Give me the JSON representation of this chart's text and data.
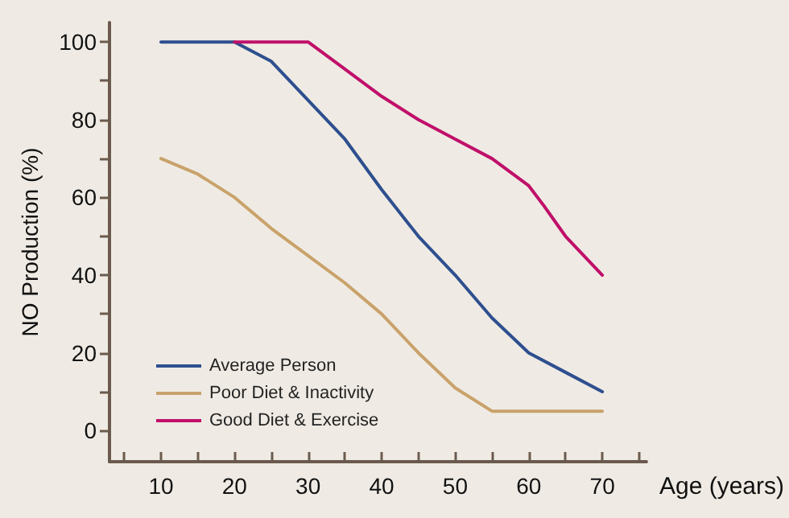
{
  "chart_data": {
    "type": "line",
    "xlabel": "Age (years)",
    "ylabel": "NO Production (%)",
    "series": [
      {
        "name": "Average Person",
        "color": "#2e4f8f",
        "x": [
          10,
          20,
          25,
          30,
          35,
          40,
          45,
          50,
          55,
          60,
          65,
          70
        ],
        "values": [
          100,
          100,
          95,
          85,
          75,
          62,
          50,
          40,
          29,
          20,
          15,
          10
        ]
      },
      {
        "name": "Poor Diet & Inactivity",
        "color": "#c9a26b",
        "x": [
          10,
          15,
          20,
          25,
          30,
          35,
          40,
          45,
          50,
          55,
          60,
          70
        ],
        "values": [
          70,
          66,
          60,
          52,
          45,
          38,
          30,
          20,
          11,
          5,
          5,
          5
        ]
      },
      {
        "name": "Good Diet & Exercise",
        "color": "#c0106a",
        "x": [
          20,
          30,
          35,
          40,
          45,
          50,
          55,
          60,
          62,
          65,
          70
        ],
        "values": [
          100,
          100,
          93,
          86,
          80,
          75,
          70,
          63,
          58,
          50,
          40
        ]
      }
    ],
    "xlim": [
      3,
      76
    ],
    "ylim": [
      -8,
      105
    ],
    "xticks": [
      {
        "value": 5,
        "label": null
      },
      10,
      {
        "value": 15,
        "label": null
      },
      20,
      {
        "value": 25,
        "label": null
      },
      30,
      {
        "value": 35,
        "label": null
      },
      40,
      {
        "value": 45,
        "label": null
      },
      50,
      {
        "value": 55,
        "label": null
      },
      60,
      {
        "value": 65,
        "label": null
      },
      70,
      {
        "value": 75,
        "label": null
      }
    ],
    "yticks": [
      0,
      {
        "value": 10,
        "label": null
      },
      20,
      {
        "value": 30,
        "label": null
      },
      40,
      {
        "value": 50,
        "label": null
      },
      60,
      {
        "value": 70,
        "label": null
      },
      80,
      {
        "value": 90,
        "label": null
      },
      100
    ],
    "grid": false,
    "legend": "bottom left",
    "marker": "none",
    "line_style": "solid"
  }
}
